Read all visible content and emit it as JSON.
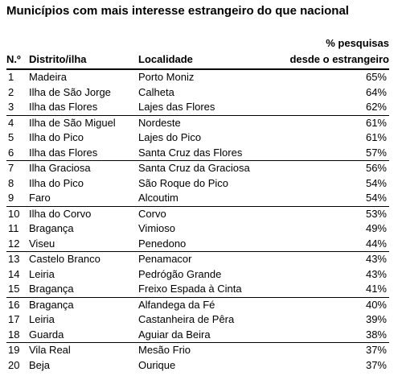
{
  "title": "Municípios com mais interesse estrangeiro do que nacional",
  "headers": {
    "num": "N.º",
    "distrito": "Distrito/ilha",
    "localidade": "Localidade",
    "pct_line1": "% pesquisas",
    "pct_line2": "desde o estrangeiro"
  },
  "rows": [
    {
      "num": "1",
      "distrito": "Madeira",
      "localidade": "Porto Moniz",
      "pct": "65%"
    },
    {
      "num": "2",
      "distrito": "Ilha de São Jorge",
      "localidade": "Calheta",
      "pct": "64%"
    },
    {
      "num": "3",
      "distrito": "Ilha das Flores",
      "localidade": "Lajes das Flores",
      "pct": "62%"
    },
    {
      "num": "4",
      "distrito": "Ilha de São Miguel",
      "localidade": "Nordeste",
      "pct": "61%"
    },
    {
      "num": "5",
      "distrito": "Ilha do Pico",
      "localidade": "Lajes do Pico",
      "pct": "61%"
    },
    {
      "num": "6",
      "distrito": "Ilha das Flores",
      "localidade": "Santa Cruz das Flores",
      "pct": "57%"
    },
    {
      "num": "7",
      "distrito": "Ilha Graciosa",
      "localidade": "Santa Cruz da Graciosa",
      "pct": "56%"
    },
    {
      "num": "8",
      "distrito": "Ilha do Pico",
      "localidade": "São Roque do Pico",
      "pct": "54%"
    },
    {
      "num": "9",
      "distrito": "Faro",
      "localidade": "Alcoutim",
      "pct": "54%"
    },
    {
      "num": "10",
      "distrito": "Ilha do Corvo",
      "localidade": "Corvo",
      "pct": "53%"
    },
    {
      "num": "11",
      "distrito": "Bragança",
      "localidade": "Vimioso",
      "pct": "49%"
    },
    {
      "num": "12",
      "distrito": "Viseu",
      "localidade": "Penedono",
      "pct": "44%"
    },
    {
      "num": "13",
      "distrito": "Castelo Branco",
      "localidade": "Penamacor",
      "pct": "43%"
    },
    {
      "num": "14",
      "distrito": "Leiria",
      "localidade": "Pedrógão Grande",
      "pct": "43%"
    },
    {
      "num": "15",
      "distrito": "Bragança",
      "localidade": "Freixo Espada à Cinta",
      "pct": "41%"
    },
    {
      "num": "16",
      "distrito": "Bragança",
      "localidade": "Alfandega da Fé",
      "pct": "40%"
    },
    {
      "num": "17",
      "distrito": "Leiria",
      "localidade": "Castanheira de Pêra",
      "pct": "39%"
    },
    {
      "num": "18",
      "distrito": "Guarda",
      "localidade": "Aguiar da Beira",
      "pct": "38%"
    },
    {
      "num": "19",
      "distrito": "Vila Real",
      "localidade": "Mesão Frio",
      "pct": "37%"
    },
    {
      "num": "20",
      "distrito": "Beja",
      "localidade": "Ourique",
      "pct": "37%"
    }
  ]
}
